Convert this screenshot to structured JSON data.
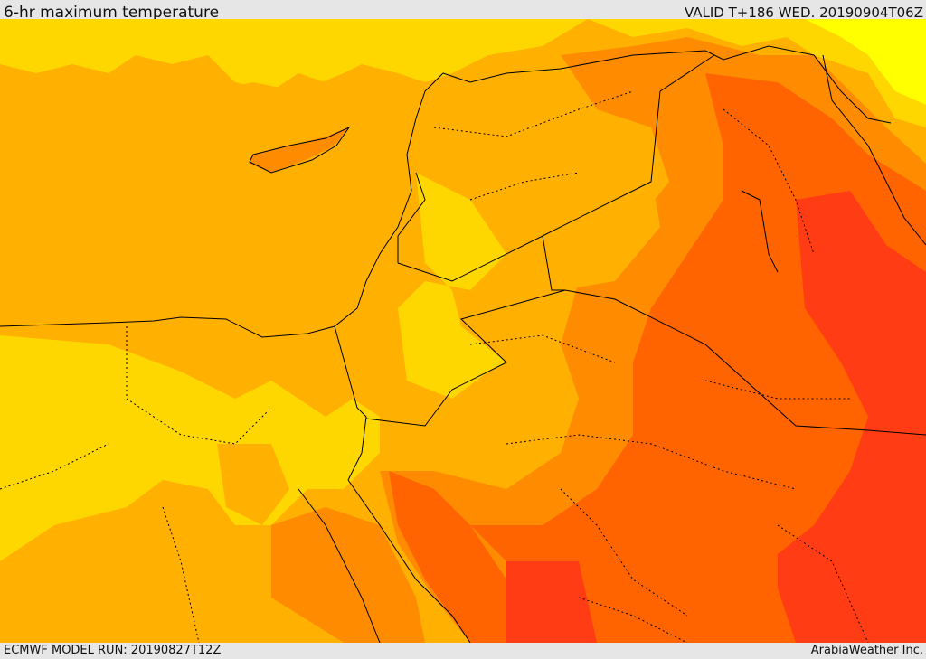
{
  "header": {
    "title": "6-hr maximum temperature",
    "valid": "VALID T+186 WED. 20190904T06Z"
  },
  "footer": {
    "model_run": "ECMWF MODEL RUN: 20190827T12Z",
    "credit": "ArabiaWeather Inc."
  },
  "palette": {
    "yellow_light": "#ffff00",
    "yellow": "#ffd700",
    "amber": "#ffb000",
    "orange": "#ff8c00",
    "dark_orange": "#ff6400",
    "red_orange": "#ff3c14",
    "border_color": "#000000"
  }
}
